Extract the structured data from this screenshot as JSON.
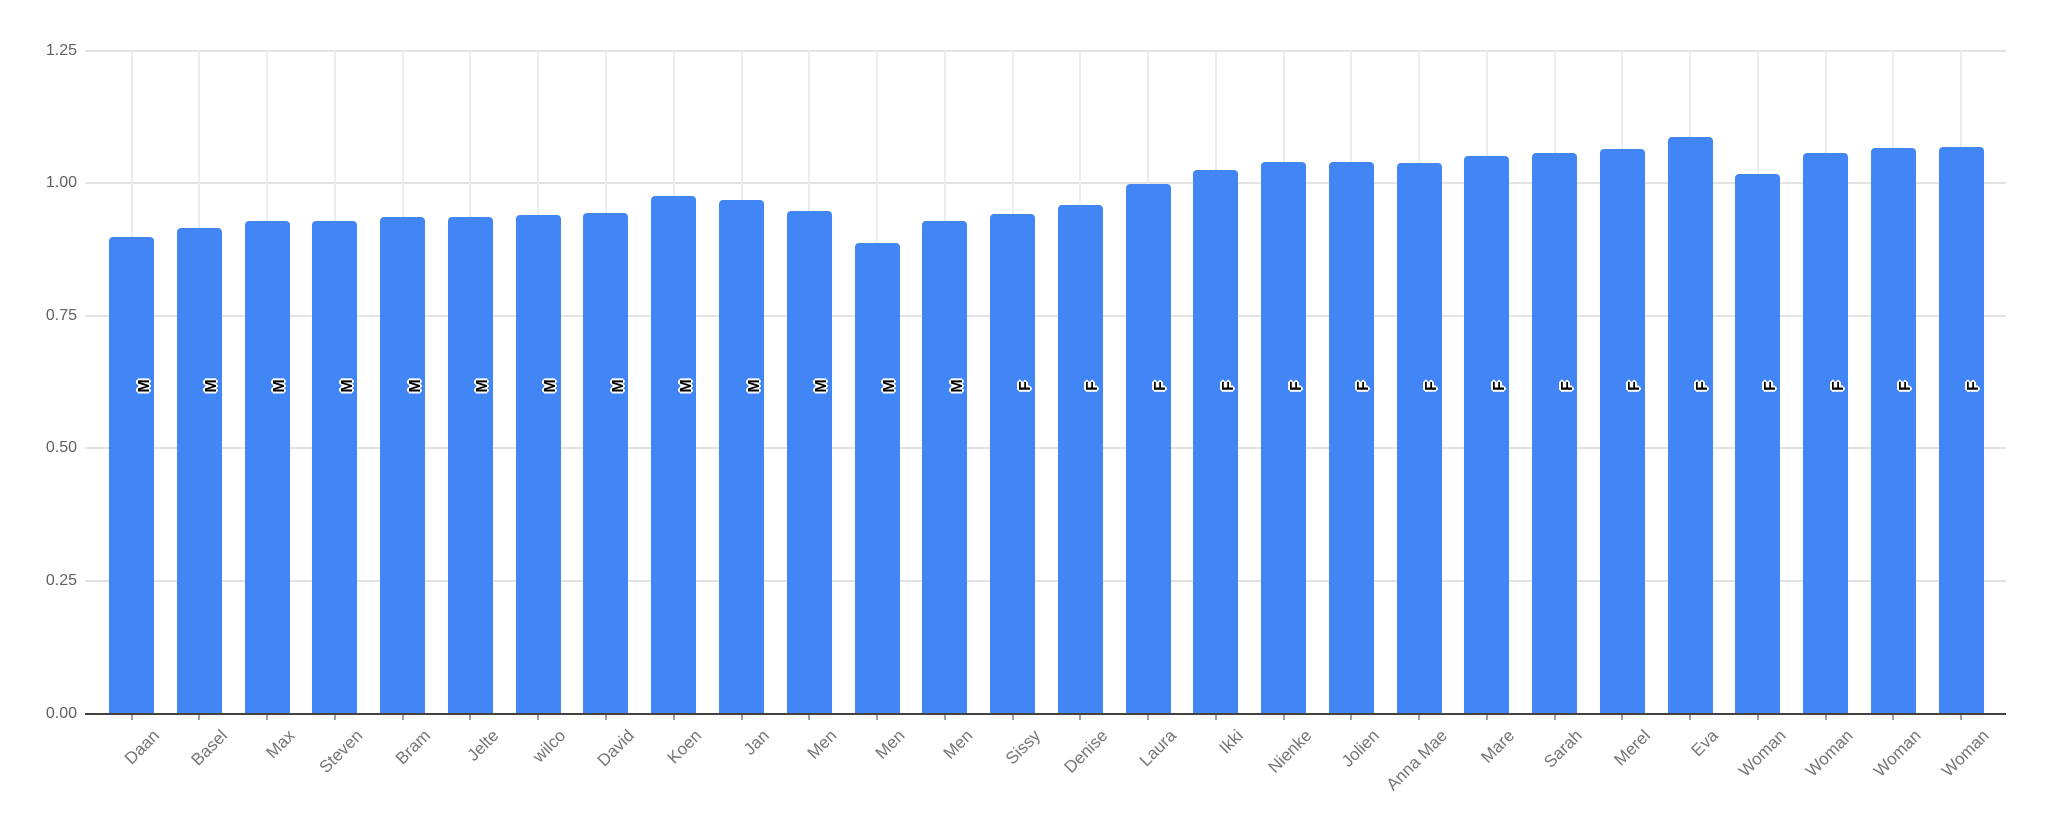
{
  "chart_data": {
    "type": "bar",
    "categories": [
      "Daan",
      "Basel",
      "Max",
      "Steven",
      "Bram",
      "Jelte",
      "wilco",
      "David",
      "Koen",
      "Jan",
      "Men",
      "Men",
      "Men",
      "Sissy",
      "Denise",
      "Laura",
      "Ikki",
      "Nienke",
      "Jolien",
      "Anna Mae",
      "Mare",
      "Sarah",
      "Merel",
      "Eva",
      "Woman",
      "Woman",
      "Woman",
      "Woman"
    ],
    "values": [
      0.899,
      0.915,
      0.928,
      0.928,
      0.936,
      0.937,
      0.94,
      0.944,
      0.976,
      0.968,
      0.948,
      0.887,
      0.929,
      0.941,
      0.959,
      0.999,
      1.024,
      1.039,
      1.039,
      1.038,
      1.051,
      1.056,
      1.065,
      1.087,
      1.018,
      1.057,
      1.067,
      1.068
    ],
    "bar_labels": [
      "M",
      "M",
      "M",
      "M",
      "M",
      "M",
      "M",
      "M",
      "M",
      "M",
      "M",
      "M",
      "M",
      "F",
      "F",
      "F",
      "F",
      "F",
      "F",
      "F",
      "F",
      "F",
      "F",
      "F",
      "F",
      "F",
      "F",
      "F"
    ],
    "yticks": [
      "0.00",
      "0.25",
      "0.50",
      "0.75",
      "1.00",
      "1.25"
    ],
    "ytick_values": [
      0,
      0.25,
      0.5,
      0.75,
      1.0,
      1.25
    ],
    "ylim": [
      0,
      1.25
    ],
    "grid": "on",
    "legend": "none",
    "series_color": "#4285f4",
    "annotation_text_color": "#000000",
    "annotation_halo_color": "#ffffff",
    "y_label_color": "#616161",
    "x_label_color": "#757575",
    "h_gridline_color": "#e3e3e3",
    "v_gridline_color": "#ededed",
    "baseline_color": "#424242"
  }
}
